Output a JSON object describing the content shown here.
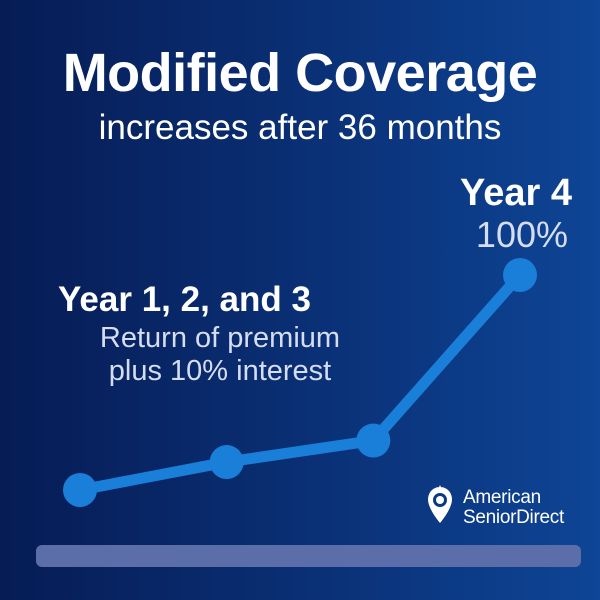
{
  "header": {
    "title": "Modified Coverage",
    "subtitle": "increases after 36 months"
  },
  "annotations": {
    "year4_label": "Year 4",
    "year4_value": "100%",
    "years123_label": "Year 1, 2, and 3",
    "years123_desc_line1": "Return of premium",
    "years123_desc_line2": "plus 10% interest"
  },
  "logo": {
    "line1": "American",
    "line2": "SeniorDirect"
  },
  "chart_data": {
    "type": "line",
    "title": "Modified Coverage",
    "points": [
      {
        "x": 0,
        "y": 0
      },
      {
        "x": 1,
        "y": 13
      },
      {
        "x": 2,
        "y": 23
      },
      {
        "x": 3,
        "y": 100
      }
    ],
    "line_color": "#1a7fd8",
    "marker_color": "#1a7fd8"
  },
  "colors": {
    "background_start": "#061c55",
    "background_end": "#0e4596",
    "accent": "#1a7fd8",
    "track": "#5b6eaa"
  }
}
